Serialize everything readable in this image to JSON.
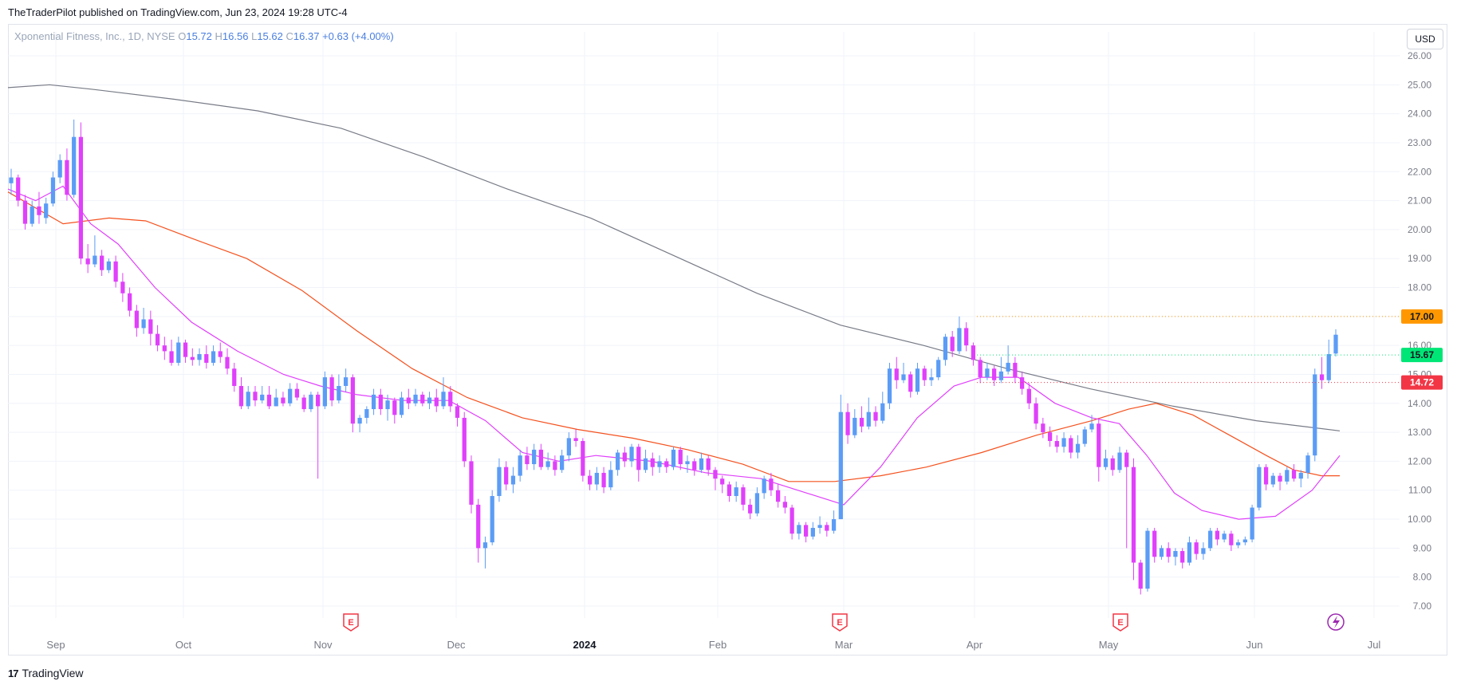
{
  "header": {
    "published": "TheTraderPilot published on TradingView.com, Jun 23, 2024 19:28 UTC-4"
  },
  "legend": {
    "symbol": "Xponential Fitness, Inc., 1D, NYSE",
    "o_label": "O",
    "o": "15.72",
    "h_label": "H",
    "h": "16.56",
    "l_label": "L",
    "l": "15.62",
    "c_label": "C",
    "c": "16.37",
    "change": "+0.63 (+4.00%)"
  },
  "currency_button": "USD",
  "footer": {
    "brand": "TradingView",
    "logo": "17"
  },
  "colors": {
    "up": "#5b9cf6",
    "down": "#e040fb",
    "ema_fast": "#e040fb",
    "ema_mid": "#f4511e",
    "sma_slow": "#787b86",
    "tag_orange": "#ff9800",
    "tag_green": "#00e676",
    "tag_red": "#f23645"
  },
  "chart_data": {
    "type": "candlestick",
    "ylim": [
      7,
      26
    ],
    "yticks": [
      "7.00",
      "8.00",
      "9.00",
      "10.00",
      "11.00",
      "12.00",
      "13.00",
      "14.00",
      "15.00",
      "16.00",
      "17.00",
      "18.00",
      "19.00",
      "20.00",
      "21.00",
      "22.00",
      "23.00",
      "24.00",
      "25.00",
      "26.00"
    ],
    "xticks": [
      {
        "label": "Sep",
        "bold": false
      },
      {
        "label": "Oct",
        "bold": false
      },
      {
        "label": "Nov",
        "bold": false
      },
      {
        "label": "Dec",
        "bold": false
      },
      {
        "label": "2024",
        "bold": true
      },
      {
        "label": "Feb",
        "bold": false
      },
      {
        "label": "Mar",
        "bold": false
      },
      {
        "label": "Apr",
        "bold": false
      },
      {
        "label": "May",
        "bold": false
      },
      {
        "label": "Jun",
        "bold": false
      },
      {
        "label": "Jul",
        "bold": false
      }
    ],
    "price_tags": [
      {
        "label": "17.00",
        "value": 17.0,
        "color": "#ff9800"
      },
      {
        "label": "15.67",
        "value": 15.67,
        "color": "#00e676"
      },
      {
        "label": "14.72",
        "value": 14.72,
        "color": "#f23645"
      }
    ],
    "earnings_markers": [
      {
        "label": "E",
        "date": "Nov"
      },
      {
        "label": "E",
        "date": "Mar"
      },
      {
        "label": "E",
        "date": "May"
      }
    ],
    "sma_slow": [
      [
        0,
        24.9
      ],
      [
        50,
        25.0
      ],
      [
        100,
        24.85
      ],
      [
        200,
        24.5
      ],
      [
        300,
        24.1
      ],
      [
        400,
        23.5
      ],
      [
        500,
        22.5
      ],
      [
        600,
        21.4
      ],
      [
        700,
        20.4
      ],
      [
        800,
        19.1
      ],
      [
        900,
        17.8
      ],
      [
        1000,
        16.7
      ],
      [
        1100,
        16.0
      ],
      [
        1200,
        15.2
      ],
      [
        1300,
        14.5
      ],
      [
        1400,
        13.9
      ],
      [
        1500,
        13.4
      ],
      [
        1600,
        13.05
      ]
    ],
    "ema_mid": [
      [
        0,
        21.3
      ],
      [
        60,
        20.2
      ],
      [
        110,
        20.4
      ],
      [
        150,
        20.3
      ],
      [
        200,
        19.7
      ],
      [
        260,
        19.0
      ],
      [
        320,
        17.9
      ],
      [
        380,
        16.5
      ],
      [
        440,
        15.2
      ],
      [
        500,
        14.2
      ],
      [
        560,
        13.5
      ],
      [
        620,
        13.1
      ],
      [
        680,
        12.8
      ],
      [
        740,
        12.4
      ],
      [
        800,
        11.9
      ],
      [
        850,
        11.3
      ],
      [
        900,
        11.3
      ],
      [
        950,
        11.5
      ],
      [
        1000,
        11.8
      ],
      [
        1060,
        12.3
      ],
      [
        1120,
        12.9
      ],
      [
        1180,
        13.4
      ],
      [
        1220,
        13.8
      ],
      [
        1250,
        14.0
      ],
      [
        1290,
        13.6
      ],
      [
        1330,
        12.9
      ],
      [
        1370,
        12.2
      ],
      [
        1400,
        11.7
      ],
      [
        1430,
        11.5
      ],
      [
        1450,
        11.5
      ]
    ],
    "ema_fast": [
      [
        0,
        21.4
      ],
      [
        30,
        21.0
      ],
      [
        60,
        21.5
      ],
      [
        90,
        20.2
      ],
      [
        120,
        19.5
      ],
      [
        160,
        18.0
      ],
      [
        200,
        16.8
      ],
      [
        250,
        15.8
      ],
      [
        300,
        15.0
      ],
      [
        340,
        14.6
      ],
      [
        380,
        14.3
      ],
      [
        430,
        14.1
      ],
      [
        480,
        14.1
      ],
      [
        520,
        13.4
      ],
      [
        560,
        12.3
      ],
      [
        600,
        12.0
      ],
      [
        640,
        12.2
      ],
      [
        700,
        12.0
      ],
      [
        760,
        11.6
      ],
      [
        820,
        11.4
      ],
      [
        870,
        10.9
      ],
      [
        910,
        10.5
      ],
      [
        950,
        11.8
      ],
      [
        990,
        13.5
      ],
      [
        1030,
        14.6
      ],
      [
        1060,
        14.9
      ],
      [
        1100,
        14.9
      ],
      [
        1140,
        14.0
      ],
      [
        1180,
        13.5
      ],
      [
        1210,
        13.3
      ],
      [
        1240,
        12.2
      ],
      [
        1270,
        10.9
      ],
      [
        1300,
        10.3
      ],
      [
        1340,
        10.0
      ],
      [
        1380,
        10.1
      ],
      [
        1420,
        11.0
      ],
      [
        1450,
        12.2
      ]
    ],
    "candles": [
      [
        21.6,
        21.8,
        22.1,
        21.2
      ],
      [
        21.8,
        21.0,
        21.9,
        20.8
      ],
      [
        21.0,
        20.2,
        21.2,
        20.0
      ],
      [
        20.2,
        20.8,
        21.0,
        20.1
      ],
      [
        20.8,
        20.5,
        21.3,
        20.2
      ],
      [
        20.4,
        20.9,
        21.1,
        20.2
      ],
      [
        20.9,
        21.8,
        22.0,
        20.8
      ],
      [
        21.8,
        22.4,
        22.6,
        21.6
      ],
      [
        22.4,
        21.2,
        22.8,
        21.0
      ],
      [
        21.2,
        23.2,
        23.8,
        21.1
      ],
      [
        23.2,
        19.0,
        23.7,
        18.8
      ],
      [
        19.0,
        18.8,
        19.5,
        18.5
      ],
      [
        18.8,
        19.1,
        19.8,
        18.7
      ],
      [
        19.1,
        18.6,
        19.3,
        18.4
      ],
      [
        18.6,
        18.9,
        19.0,
        18.5
      ],
      [
        18.9,
        18.2,
        19.1,
        18.0
      ],
      [
        18.2,
        17.8,
        18.5,
        17.5
      ],
      [
        17.8,
        17.2,
        18.0,
        17.0
      ],
      [
        17.2,
        16.6,
        17.4,
        16.3
      ],
      [
        16.6,
        16.9,
        17.3,
        16.4
      ],
      [
        16.9,
        16.4,
        17.2,
        16.0
      ],
      [
        16.4,
        16.0,
        16.7,
        15.8
      ],
      [
        16.0,
        15.8,
        16.3,
        15.5
      ],
      [
        15.8,
        15.4,
        16.2,
        15.3
      ],
      [
        15.4,
        16.1,
        16.3,
        15.3
      ],
      [
        16.1,
        15.6,
        16.2,
        15.4
      ],
      [
        15.6,
        15.5,
        15.9,
        15.3
      ],
      [
        15.5,
        15.7,
        15.9,
        15.3
      ],
      [
        15.7,
        15.4,
        16.0,
        15.2
      ],
      [
        15.4,
        15.8,
        16.0,
        15.3
      ],
      [
        15.8,
        15.6,
        16.1,
        15.4
      ],
      [
        15.6,
        15.2,
        15.9,
        15.0
      ],
      [
        15.2,
        14.6,
        15.4,
        14.4
      ],
      [
        14.6,
        13.9,
        14.9,
        13.8
      ],
      [
        13.9,
        14.4,
        14.6,
        13.8
      ],
      [
        14.4,
        14.1,
        14.6,
        13.9
      ],
      [
        14.1,
        14.3,
        14.6,
        14.0
      ],
      [
        14.3,
        13.9,
        14.6,
        13.8
      ],
      [
        13.9,
        14.2,
        14.5,
        13.9
      ],
      [
        14.2,
        14.0,
        14.4,
        13.9
      ],
      [
        14.0,
        14.5,
        14.7,
        13.9
      ],
      [
        14.5,
        14.2,
        14.7,
        14.1
      ],
      [
        14.2,
        13.8,
        14.3,
        13.7
      ],
      [
        13.8,
        14.3,
        14.4,
        13.7
      ],
      [
        14.3,
        13.9,
        14.4,
        11.4
      ],
      [
        13.9,
        14.9,
        15.1,
        13.8
      ],
      [
        14.9,
        14.1,
        15.0,
        13.9
      ],
      [
        14.1,
        14.6,
        15.0,
        14.0
      ],
      [
        14.6,
        14.9,
        15.2,
        14.4
      ],
      [
        14.9,
        13.3,
        15.0,
        13.0
      ],
      [
        13.3,
        13.5,
        13.6,
        13.0
      ],
      [
        13.5,
        13.8,
        13.9,
        13.3
      ],
      [
        13.8,
        14.3,
        14.5,
        13.6
      ],
      [
        14.3,
        13.8,
        14.5,
        13.6
      ],
      [
        13.8,
        14.1,
        14.3,
        13.4
      ],
      [
        14.1,
        13.6,
        14.2,
        13.3
      ],
      [
        13.6,
        14.2,
        14.4,
        13.5
      ],
      [
        14.2,
        14.0,
        14.5,
        13.8
      ],
      [
        14.0,
        14.3,
        14.5,
        13.9
      ],
      [
        14.3,
        14.0,
        14.4,
        13.9
      ],
      [
        14.0,
        14.2,
        14.4,
        13.8
      ],
      [
        14.2,
        13.9,
        14.5,
        13.7
      ],
      [
        13.9,
        14.4,
        14.9,
        13.8
      ],
      [
        14.4,
        13.9,
        14.6,
        13.7
      ],
      [
        13.9,
        13.5,
        14.0,
        13.2
      ],
      [
        13.5,
        12.0,
        13.7,
        11.8
      ],
      [
        12.0,
        10.5,
        12.2,
        10.2
      ],
      [
        10.5,
        9.0,
        10.7,
        8.5
      ],
      [
        9.0,
        9.2,
        9.4,
        8.3
      ],
      [
        9.2,
        10.8,
        11.0,
        9.1
      ],
      [
        10.8,
        11.8,
        12.1,
        10.6
      ],
      [
        11.8,
        11.2,
        12.0,
        11.0
      ],
      [
        11.2,
        11.5,
        11.8,
        10.9
      ],
      [
        11.5,
        12.2,
        12.4,
        11.3
      ],
      [
        12.2,
        11.9,
        12.5,
        11.7
      ],
      [
        11.9,
        12.4,
        12.6,
        11.7
      ],
      [
        12.4,
        11.8,
        12.6,
        11.7
      ],
      [
        11.8,
        12.0,
        12.3,
        11.7
      ],
      [
        12.0,
        11.7,
        12.2,
        11.5
      ],
      [
        11.7,
        12.2,
        12.4,
        11.6
      ],
      [
        12.2,
        12.8,
        13.0,
        12.0
      ],
      [
        12.8,
        12.7,
        13.1,
        12.5
      ],
      [
        12.7,
        11.5,
        12.8,
        11.3
      ],
      [
        11.5,
        11.2,
        11.7,
        11.0
      ],
      [
        11.2,
        11.6,
        11.8,
        11.0
      ],
      [
        11.6,
        11.1,
        11.8,
        10.9
      ],
      [
        11.1,
        11.7,
        12.0,
        11.0
      ],
      [
        11.7,
        12.3,
        12.4,
        11.5
      ],
      [
        12.3,
        12.0,
        12.5,
        11.8
      ],
      [
        12.0,
        12.5,
        12.6,
        11.8
      ],
      [
        12.5,
        11.7,
        12.6,
        11.3
      ],
      [
        11.7,
        12.1,
        12.4,
        11.6
      ],
      [
        12.1,
        11.8,
        12.3,
        11.5
      ],
      [
        11.8,
        12.0,
        12.2,
        11.6
      ],
      [
        12.0,
        11.8,
        12.1,
        11.6
      ],
      [
        11.8,
        12.4,
        12.5,
        11.7
      ],
      [
        12.4,
        11.9,
        12.5,
        11.7
      ],
      [
        11.9,
        12.0,
        12.2,
        11.6
      ],
      [
        12.0,
        11.7,
        12.1,
        11.5
      ],
      [
        11.7,
        12.1,
        12.3,
        11.6
      ],
      [
        12.1,
        11.7,
        12.2,
        11.5
      ],
      [
        11.7,
        11.4,
        11.8,
        11.0
      ],
      [
        11.4,
        11.2,
        11.5,
        10.9
      ],
      [
        11.2,
        10.8,
        11.3,
        10.6
      ],
      [
        10.8,
        11.1,
        11.3,
        10.6
      ],
      [
        11.1,
        10.5,
        11.2,
        10.3
      ],
      [
        10.5,
        10.2,
        10.7,
        10.0
      ],
      [
        10.2,
        10.9,
        11.1,
        10.1
      ],
      [
        10.9,
        11.4,
        11.5,
        10.7
      ],
      [
        11.4,
        11.0,
        11.6,
        10.8
      ],
      [
        11.0,
        10.6,
        11.2,
        10.4
      ],
      [
        10.6,
        10.4,
        10.8,
        10.2
      ],
      [
        10.4,
        9.5,
        10.5,
        9.3
      ],
      [
        9.5,
        9.8,
        9.9,
        9.3
      ],
      [
        9.8,
        9.4,
        9.9,
        9.2
      ],
      [
        9.4,
        9.7,
        9.9,
        9.3
      ],
      [
        9.7,
        9.8,
        10.1,
        9.5
      ],
      [
        9.8,
        9.6,
        9.9,
        9.4
      ],
      [
        9.6,
        10.0,
        10.3,
        9.5
      ],
      [
        10.0,
        13.7,
        14.3,
        11.0
      ],
      [
        13.7,
        12.9,
        14.0,
        12.6
      ],
      [
        12.9,
        13.5,
        13.8,
        12.8
      ],
      [
        13.5,
        13.2,
        13.9,
        13.0
      ],
      [
        13.2,
        13.7,
        14.2,
        13.1
      ],
      [
        13.7,
        13.4,
        13.9,
        13.2
      ],
      [
        13.4,
        14.0,
        14.4,
        13.3
      ],
      [
        14.0,
        15.2,
        15.4,
        13.8
      ],
      [
        15.2,
        14.8,
        15.6,
        14.5
      ],
      [
        14.8,
        15.0,
        15.4,
        14.7
      ],
      [
        15.0,
        14.4,
        15.1,
        14.2
      ],
      [
        14.4,
        15.2,
        15.4,
        14.3
      ],
      [
        15.2,
        14.8,
        15.3,
        14.6
      ],
      [
        14.8,
        14.9,
        15.2,
        14.6
      ],
      [
        14.9,
        15.5,
        15.6,
        14.8
      ],
      [
        15.5,
        16.3,
        16.4,
        15.3
      ],
      [
        16.3,
        15.8,
        16.5,
        15.6
      ],
      [
        15.8,
        16.6,
        17.0,
        15.7
      ],
      [
        16.6,
        16.0,
        16.8,
        15.8
      ],
      [
        16.0,
        15.5,
        16.1,
        15.3
      ],
      [
        15.5,
        14.9,
        15.6,
        14.7
      ],
      [
        14.9,
        15.2,
        15.4,
        14.8
      ],
      [
        15.2,
        14.8,
        15.3,
        14.6
      ],
      [
        14.8,
        15.1,
        15.6,
        14.7
      ],
      [
        15.1,
        15.4,
        16.0,
        15.0
      ],
      [
        15.4,
        14.9,
        15.6,
        14.7
      ],
      [
        14.9,
        14.5,
        15.1,
        14.3
      ],
      [
        14.5,
        14.0,
        14.7,
        13.8
      ],
      [
        14.0,
        13.3,
        14.2,
        13.1
      ],
      [
        13.3,
        13.0,
        13.5,
        12.8
      ],
      [
        13.0,
        12.7,
        13.2,
        12.5
      ],
      [
        12.7,
        12.5,
        12.9,
        12.3
      ],
      [
        12.5,
        12.8,
        13.0,
        12.3
      ],
      [
        12.8,
        12.3,
        12.9,
        12.1
      ],
      [
        12.3,
        12.6,
        12.9,
        12.1
      ],
      [
        12.6,
        13.1,
        13.2,
        12.5
      ],
      [
        13.1,
        13.3,
        13.6,
        13.0
      ],
      [
        13.3,
        11.8,
        13.5,
        11.3
      ],
      [
        11.8,
        12.1,
        12.4,
        11.7
      ],
      [
        12.1,
        11.7,
        12.2,
        11.5
      ],
      [
        11.7,
        12.3,
        12.5,
        11.6
      ],
      [
        12.3,
        11.8,
        12.4,
        9.0
      ],
      [
        11.8,
        8.5,
        12.1,
        7.9
      ],
      [
        8.5,
        7.6,
        8.6,
        7.4
      ],
      [
        7.6,
        9.6,
        9.7,
        7.5
      ],
      [
        9.6,
        8.7,
        9.7,
        8.5
      ],
      [
        8.7,
        9.0,
        9.1,
        8.6
      ],
      [
        9.0,
        8.7,
        9.2,
        8.5
      ],
      [
        8.7,
        8.9,
        9.0,
        8.4
      ],
      [
        8.9,
        8.5,
        9.0,
        8.3
      ],
      [
        8.5,
        9.2,
        9.4,
        8.4
      ],
      [
        9.2,
        8.8,
        9.3,
        8.6
      ],
      [
        8.8,
        9.0,
        9.2,
        8.6
      ],
      [
        9.0,
        9.6,
        9.7,
        8.9
      ],
      [
        9.6,
        9.3,
        9.7,
        9.1
      ],
      [
        9.3,
        9.5,
        9.6,
        9.2
      ],
      [
        9.5,
        9.1,
        9.6,
        8.9
      ],
      [
        9.1,
        9.2,
        9.3,
        9.0
      ],
      [
        9.2,
        9.3,
        9.4,
        9.1
      ],
      [
        9.3,
        10.4,
        10.5,
        9.2
      ],
      [
        10.4,
        11.8,
        11.9,
        10.3
      ],
      [
        11.8,
        11.2,
        11.9,
        11.0
      ],
      [
        11.2,
        11.5,
        11.6,
        11.1
      ],
      [
        11.5,
        11.3,
        11.6,
        11.0
      ],
      [
        11.3,
        11.7,
        11.8,
        11.2
      ],
      [
        11.7,
        11.4,
        11.9,
        11.3
      ],
      [
        11.4,
        11.6,
        11.7,
        11.1
      ],
      [
        11.6,
        12.2,
        12.3,
        11.4
      ],
      [
        12.2,
        15.0,
        15.2,
        12.0
      ],
      [
        15.0,
        14.8,
        15.6,
        14.5
      ],
      [
        14.8,
        15.7,
        16.2,
        14.7
      ],
      [
        15.72,
        16.37,
        16.56,
        15.62
      ]
    ]
  }
}
